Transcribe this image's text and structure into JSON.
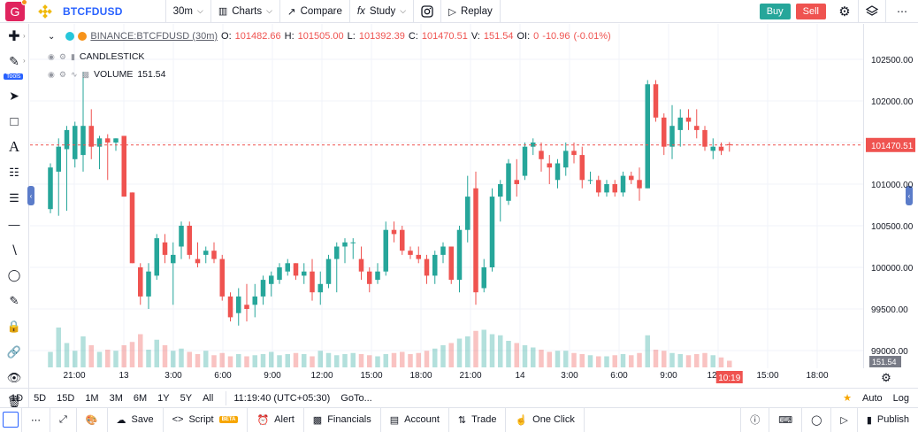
{
  "topbar": {
    "avatar_letter": "G",
    "symbol": "BTCFDUSD",
    "interval": "30m",
    "charts_label": "Charts",
    "compare_label": "Compare",
    "study_label": "Study",
    "replay_label": "Replay",
    "buy_label": "Buy",
    "sell_label": "Sell"
  },
  "legend": {
    "symbol_text": "BINANCE:BTCFDUSD (30m)",
    "o_label": "O:",
    "o_val": "101482.66",
    "h_label": "H:",
    "h_val": "101505.00",
    "l_label": "L:",
    "l_val": "101392.39",
    "c_label": "C:",
    "c_val": "101470.51",
    "v_label": "V:",
    "v_val": "151.54",
    "oi_label": "OI:",
    "oi_val": "0",
    "change": "-10.96",
    "change_pct": "(-0.01%)",
    "candlestick_label": "CANDLESTICK",
    "volume_label": "VOLUME",
    "volume_val": "151.54"
  },
  "price_axis": {
    "ticks": [
      "102500.00",
      "102000.00",
      "101500.00",
      "101000.00",
      "100500.00",
      "100000.00",
      "99500.00",
      "99000.00"
    ],
    "last_price": "101470.51",
    "volume_label": "151.54"
  },
  "time_axis": {
    "ticks": [
      "21:00",
      "13",
      "3:00",
      "6:00",
      "9:00",
      "12:00",
      "15:00",
      "18:00",
      "21:00",
      "14",
      "3:00",
      "6:00",
      "9:00",
      "12:00",
      "15:00",
      "18:00",
      "21:00"
    ],
    "countdown": "10:19"
  },
  "bottombar": {
    "ranges": [
      "1D",
      "5D",
      "15D",
      "1M",
      "3M",
      "6M",
      "1Y",
      "5Y",
      "All"
    ],
    "time": "11:19:40 (UTC+05:30)",
    "goto": "GoTo...",
    "auto": "Auto",
    "log": "Log"
  },
  "footer": {
    "save": "Save",
    "script": "Script",
    "beta": "BETA",
    "alert": "Alert",
    "financials": "Financials",
    "account": "Account",
    "trade": "Trade",
    "one_click": "One Click",
    "publish": "Publish"
  },
  "colors": {
    "up": "#26a69a",
    "down": "#ef5350",
    "accent": "#2962ff"
  },
  "chart_data": {
    "type": "candlestick",
    "series_label": "BINANCE:BTCFDUSD (30m)",
    "ylim": [
      98800,
      102800
    ],
    "candles": [
      {
        "o": 100700,
        "h": 101250,
        "l": 100650,
        "c": 101200
      },
      {
        "o": 101150,
        "h": 101550,
        "l": 100620,
        "c": 101450
      },
      {
        "o": 101420,
        "h": 101700,
        "l": 100680,
        "c": 101650
      },
      {
        "o": 101300,
        "h": 101750,
        "l": 101200,
        "c": 101700
      },
      {
        "o": 101350,
        "h": 102350,
        "l": 101150,
        "c": 101700
      },
      {
        "o": 101700,
        "h": 101900,
        "l": 101300,
        "c": 101450
      },
      {
        "o": 101450,
        "h": 101580,
        "l": 101180,
        "c": 101550
      },
      {
        "o": 101550,
        "h": 101600,
        "l": 101050,
        "c": 101500
      },
      {
        "o": 101500,
        "h": 101550,
        "l": 101400,
        "c": 101550
      },
      {
        "o": 101580,
        "h": 101580,
        "l": 100850,
        "c": 100850
      },
      {
        "o": 100900,
        "h": 100900,
        "l": 100050,
        "c": 100050
      },
      {
        "o": 100000,
        "h": 100050,
        "l": 99550,
        "c": 99650
      },
      {
        "o": 99650,
        "h": 100050,
        "l": 99500,
        "c": 99950
      },
      {
        "o": 99900,
        "h": 100400,
        "l": 99850,
        "c": 100350
      },
      {
        "o": 100300,
        "h": 100400,
        "l": 100050,
        "c": 100150
      },
      {
        "o": 100050,
        "h": 100300,
        "l": 99550,
        "c": 100150
      },
      {
        "o": 100250,
        "h": 100550,
        "l": 100100,
        "c": 100500
      },
      {
        "o": 100500,
        "h": 100550,
        "l": 100100,
        "c": 100150
      },
      {
        "o": 100100,
        "h": 100300,
        "l": 100000,
        "c": 100050
      },
      {
        "o": 100150,
        "h": 100250,
        "l": 100050,
        "c": 100200
      },
      {
        "o": 100200,
        "h": 100300,
        "l": 100050,
        "c": 100100
      },
      {
        "o": 100100,
        "h": 100150,
        "l": 99600,
        "c": 99650
      },
      {
        "o": 99650,
        "h": 99700,
        "l": 99350,
        "c": 99400
      },
      {
        "o": 99450,
        "h": 99750,
        "l": 99300,
        "c": 99650
      },
      {
        "o": 99550,
        "h": 99800,
        "l": 99350,
        "c": 99500
      },
      {
        "o": 99550,
        "h": 99800,
        "l": 99400,
        "c": 99650
      },
      {
        "o": 99650,
        "h": 99900,
        "l": 99550,
        "c": 99850
      },
      {
        "o": 99800,
        "h": 99950,
        "l": 99650,
        "c": 99900
      },
      {
        "o": 99850,
        "h": 100050,
        "l": 99800,
        "c": 100000
      },
      {
        "o": 99950,
        "h": 100100,
        "l": 99900,
        "c": 100050
      },
      {
        "o": 100050,
        "h": 100050,
        "l": 99850,
        "c": 99900
      },
      {
        "o": 99900,
        "h": 100050,
        "l": 99800,
        "c": 99950
      },
      {
        "o": 99950,
        "h": 100100,
        "l": 99600,
        "c": 99700
      },
      {
        "o": 99700,
        "h": 99950,
        "l": 99550,
        "c": 99800
      },
      {
        "o": 99800,
        "h": 100150,
        "l": 99750,
        "c": 100100
      },
      {
        "o": 100100,
        "h": 100300,
        "l": 99700,
        "c": 100250
      },
      {
        "o": 100250,
        "h": 100350,
        "l": 100050,
        "c": 100300
      },
      {
        "o": 100300,
        "h": 100350,
        "l": 100100,
        "c": 100300
      },
      {
        "o": 100100,
        "h": 100250,
        "l": 99850,
        "c": 99950
      },
      {
        "o": 99950,
        "h": 100000,
        "l": 99700,
        "c": 99800
      },
      {
        "o": 99850,
        "h": 100050,
        "l": 99800,
        "c": 99950
      },
      {
        "o": 99950,
        "h": 100550,
        "l": 99900,
        "c": 100450
      },
      {
        "o": 100450,
        "h": 100550,
        "l": 100300,
        "c": 100400
      },
      {
        "o": 100450,
        "h": 100500,
        "l": 100150,
        "c": 100200
      },
      {
        "o": 100200,
        "h": 100250,
        "l": 100100,
        "c": 100150
      },
      {
        "o": 100150,
        "h": 100250,
        "l": 100050,
        "c": 100100
      },
      {
        "o": 100100,
        "h": 100150,
        "l": 99800,
        "c": 99900
      },
      {
        "o": 99900,
        "h": 100200,
        "l": 99800,
        "c": 100150
      },
      {
        "o": 100150,
        "h": 100300,
        "l": 100050,
        "c": 100250
      },
      {
        "o": 100250,
        "h": 100250,
        "l": 99800,
        "c": 99850
      },
      {
        "o": 99850,
        "h": 100500,
        "l": 99700,
        "c": 100450
      },
      {
        "o": 100450,
        "h": 101100,
        "l": 100300,
        "c": 100850
      },
      {
        "o": 100950,
        "h": 101150,
        "l": 99550,
        "c": 99700
      },
      {
        "o": 99750,
        "h": 100100,
        "l": 99700,
        "c": 100000
      },
      {
        "o": 100000,
        "h": 100950,
        "l": 99950,
        "c": 100850
      },
      {
        "o": 100850,
        "h": 101050,
        "l": 100550,
        "c": 101000
      },
      {
        "o": 100800,
        "h": 101300,
        "l": 100750,
        "c": 101250
      },
      {
        "o": 101050,
        "h": 101300,
        "l": 100850,
        "c": 101000
      },
      {
        "o": 101100,
        "h": 101500,
        "l": 101050,
        "c": 101450
      },
      {
        "o": 101450,
        "h": 101550,
        "l": 101350,
        "c": 101500
      },
      {
        "o": 101400,
        "h": 101500,
        "l": 101150,
        "c": 101300
      },
      {
        "o": 101250,
        "h": 101350,
        "l": 101000,
        "c": 101200
      },
      {
        "o": 101050,
        "h": 101300,
        "l": 100950,
        "c": 101250
      },
      {
        "o": 101200,
        "h": 101500,
        "l": 101100,
        "c": 101400
      },
      {
        "o": 101400,
        "h": 101500,
        "l": 101250,
        "c": 101350
      },
      {
        "o": 101350,
        "h": 101450,
        "l": 100950,
        "c": 101050
      },
      {
        "o": 101050,
        "h": 101150,
        "l": 101000,
        "c": 101050
      },
      {
        "o": 101050,
        "h": 101100,
        "l": 100850,
        "c": 100900
      },
      {
        "o": 100900,
        "h": 101050,
        "l": 100850,
        "c": 101000
      },
      {
        "o": 101000,
        "h": 101050,
        "l": 100850,
        "c": 100900
      },
      {
        "o": 100900,
        "h": 101150,
        "l": 100850,
        "c": 101100
      },
      {
        "o": 101100,
        "h": 101150,
        "l": 101000,
        "c": 101050
      },
      {
        "o": 101050,
        "h": 101200,
        "l": 100800,
        "c": 100950
      },
      {
        "o": 100950,
        "h": 102250,
        "l": 100950,
        "c": 102200
      },
      {
        "o": 102200,
        "h": 102250,
        "l": 101750,
        "c": 101800
      },
      {
        "o": 101800,
        "h": 101850,
        "l": 101350,
        "c": 101450
      },
      {
        "o": 101450,
        "h": 101950,
        "l": 101300,
        "c": 101700
      },
      {
        "o": 101650,
        "h": 101900,
        "l": 101450,
        "c": 101800
      },
      {
        "o": 101800,
        "h": 101900,
        "l": 101650,
        "c": 101750
      },
      {
        "o": 101700,
        "h": 101900,
        "l": 101550,
        "c": 101650
      },
      {
        "o": 101650,
        "h": 101700,
        "l": 101400,
        "c": 101450
      },
      {
        "o": 101400,
        "h": 101550,
        "l": 101300,
        "c": 101450
      },
      {
        "o": 101450,
        "h": 101500,
        "l": 101350,
        "c": 101400
      },
      {
        "o": 101480,
        "h": 101505,
        "l": 101390,
        "c": 101470
      }
    ],
    "volume": [
      14,
      36,
      22,
      15,
      28,
      20,
      14,
      16,
      15,
      20,
      23,
      30,
      16,
      25,
      20,
      15,
      17,
      14,
      12,
      15,
      11,
      13,
      10,
      12,
      10,
      11,
      12,
      14,
      11,
      12,
      13,
      12,
      10,
      15,
      13,
      11,
      12,
      13,
      12,
      11,
      10,
      12,
      13,
      14,
      12,
      13,
      15,
      17,
      20,
      22,
      26,
      28,
      33,
      34,
      30,
      29,
      24,
      22,
      20,
      18,
      16,
      14,
      15,
      15,
      13,
      12,
      11,
      10,
      10,
      11,
      12,
      11,
      13,
      29,
      16,
      15,
      13,
      12,
      11,
      12,
      13,
      11,
      9,
      6
    ]
  }
}
